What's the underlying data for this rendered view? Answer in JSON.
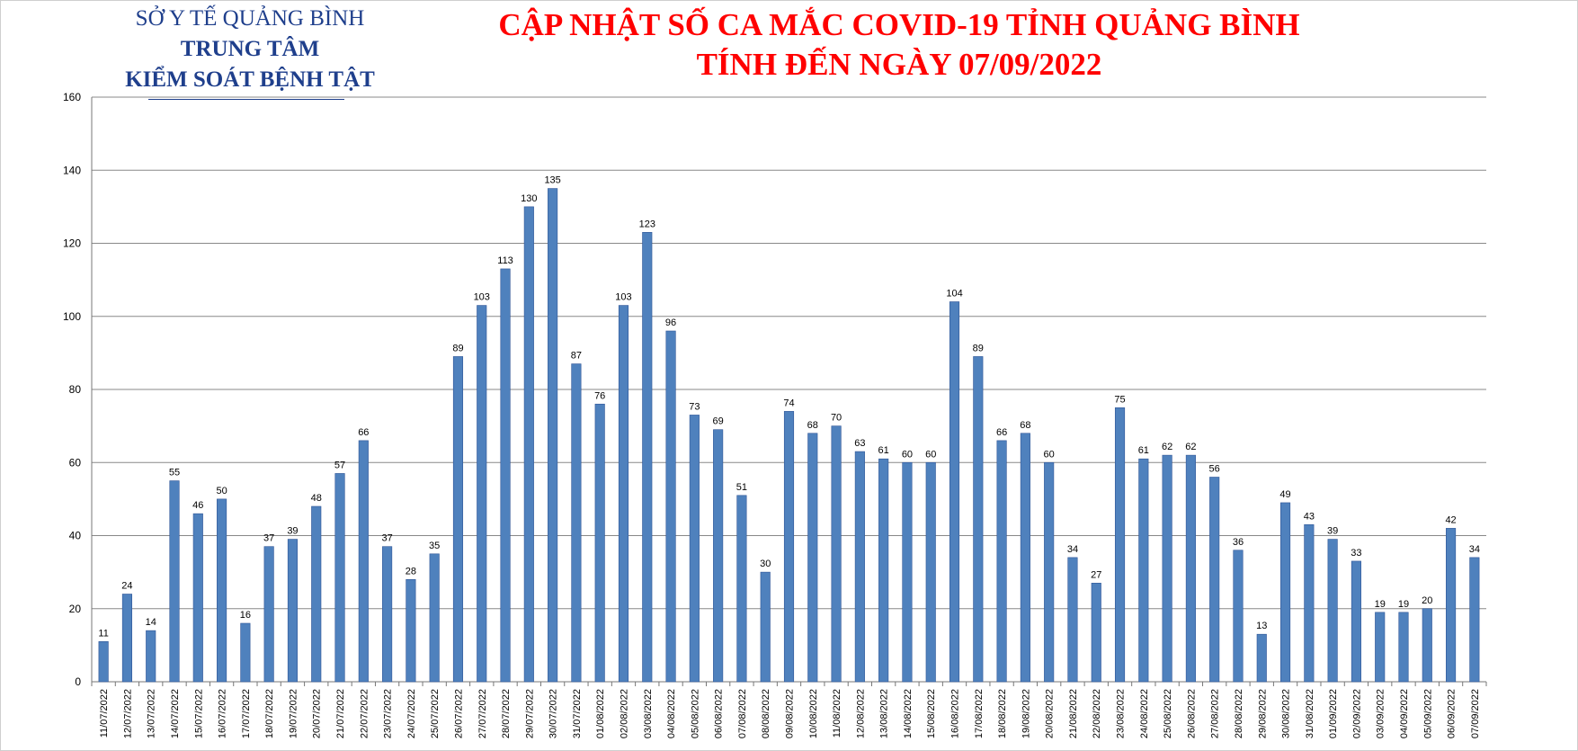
{
  "header": {
    "org_line1": "SỞ Y TẾ QUẢNG BÌNH",
    "org_line2": "TRUNG TÂM",
    "org_line3": "KIỂM SOÁT BỆNH TẬT",
    "title_line1": "CẬP NHẬT SỐ CA MẮC COVID-19 TỈNH QUẢNG BÌNH",
    "title_line2": "TÍNH ĐẾN NGÀY 07/09/2022"
  },
  "colors": {
    "bar": "#4f81bd",
    "bar_edge": "#2f5597",
    "title": "#ff0000",
    "org": "#1f3f8c",
    "grid": "#888888"
  },
  "chart_data": {
    "type": "bar",
    "title": "",
    "xlabel": "",
    "ylabel": "",
    "ylim": [
      0,
      160
    ],
    "yticks": [
      0,
      20,
      40,
      60,
      80,
      100,
      120,
      140,
      160
    ],
    "grid": true,
    "categories": [
      "11/07/2022",
      "12/07/2022",
      "13/07/2022",
      "14/07/2022",
      "15/07/2022",
      "16/07/2022",
      "17/07/2022",
      "18/07/2022",
      "19/07/2022",
      "20/07/2022",
      "21/07/2022",
      "22/07/2022",
      "23/07/2022",
      "24/07/2022",
      "25/07/2022",
      "26/07/2022",
      "27/07/2022",
      "28/07/2022",
      "29/07/2022",
      "30/07/2022",
      "31/07/2022",
      "01/08/2022",
      "02/08/2022",
      "03/08/2022",
      "04/08/2022",
      "05/08/2022",
      "06/08/2022",
      "07/08/2022",
      "08/08/2022",
      "09/08/2022",
      "10/08/2022",
      "11/08/2022",
      "12/08/2022",
      "13/08/2022",
      "14/08/2022",
      "15/08/2022",
      "16/08/2022",
      "17/08/2022",
      "18/08/2022",
      "19/08/2022",
      "20/08/2022",
      "21/08/2022",
      "22/08/2022",
      "23/08/2022",
      "24/08/2022",
      "25/08/2022",
      "26/08/2022",
      "27/08/2022",
      "28/08/2022",
      "29/08/2022",
      "30/08/2022",
      "31/08/2022",
      "01/09/2022",
      "02/09/2022",
      "03/09/2022",
      "04/09/2022",
      "05/09/2022",
      "06/09/2022",
      "07/09/2022"
    ],
    "values": [
      11,
      24,
      14,
      55,
      46,
      50,
      16,
      37,
      39,
      48,
      57,
      66,
      37,
      28,
      35,
      89,
      103,
      113,
      130,
      135,
      87,
      76,
      103,
      123,
      96,
      73,
      69,
      51,
      30,
      74,
      68,
      70,
      63,
      61,
      60,
      60,
      104,
      89,
      66,
      68,
      60,
      34,
      27,
      75,
      61,
      62,
      62,
      56,
      36,
      13,
      49,
      43,
      39,
      33,
      19,
      19,
      20,
      42,
      34
    ]
  }
}
